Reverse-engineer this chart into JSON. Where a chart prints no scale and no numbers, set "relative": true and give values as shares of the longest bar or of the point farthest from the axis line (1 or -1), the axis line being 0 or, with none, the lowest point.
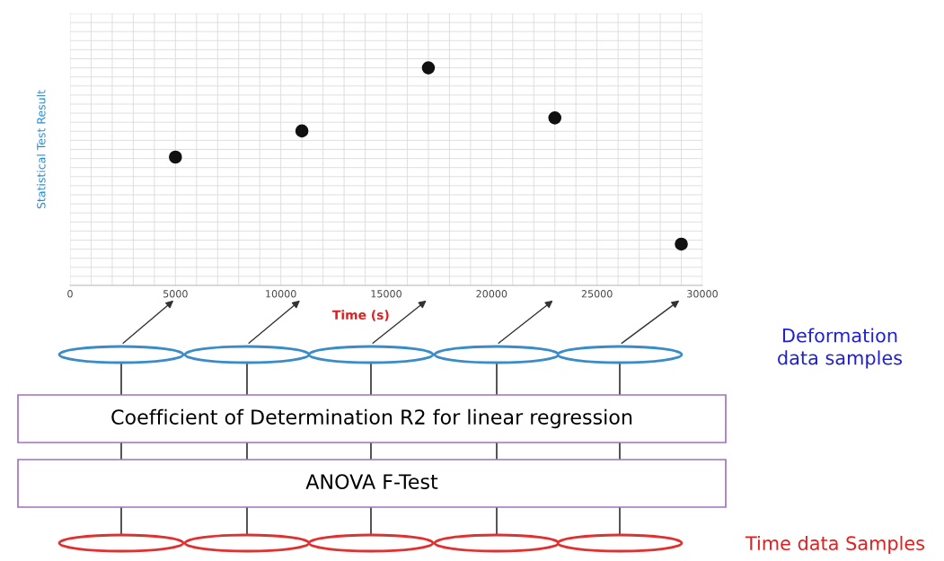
{
  "chart_data": {
    "type": "scatter",
    "xlabel": "Time (s)",
    "ylabel": "Statistical Test Result",
    "x": [
      5000,
      11000,
      17000,
      23000,
      29000
    ],
    "series": [
      {
        "color": "#111111",
        "values": [
          0.59,
          0.71,
          1,
          0.77,
          0.19
        ]
      }
    ],
    "relative": true,
    "xlim": [
      0,
      30000
    ],
    "xticks": [
      0,
      5000,
      10000,
      15000,
      20000,
      25000,
      30000
    ],
    "tick_labels": "x",
    "grid": true,
    "marker": "circle",
    "annotations": [
      "Coefficient of Determination R2 for linear regression",
      "ANOVA F-Test",
      "Deformation\ndata samples",
      "Time data Samples"
    ]
  }
}
